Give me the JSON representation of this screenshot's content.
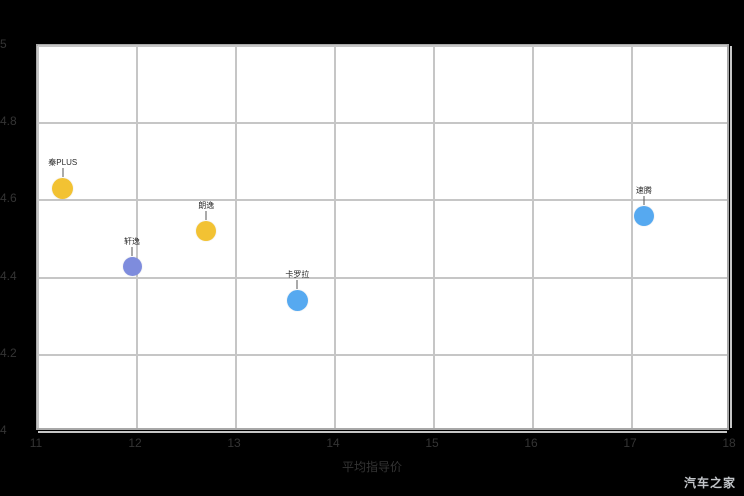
{
  "chart_data": {
    "type": "scatter",
    "title": "",
    "xlabel": "平均指导价",
    "ylabel": "",
    "xlim": [
      11,
      18
    ],
    "ylim": [
      4,
      5
    ],
    "x_ticks": [
      11,
      12,
      13,
      14,
      15,
      16,
      17,
      18
    ],
    "y_ticks": [
      5,
      4.8,
      4.6,
      4.4,
      4.2,
      4
    ],
    "grid": true,
    "legend": "none",
    "points": [
      {
        "label": "秦PLUS",
        "x": 11.25,
        "y": 4.63,
        "color": "#f2c233",
        "size": 21
      },
      {
        "label": "轩逸",
        "x": 11.95,
        "y": 4.43,
        "color": "#7e8cdd",
        "size": 19
      },
      {
        "label": "朗逸",
        "x": 12.7,
        "y": 4.52,
        "color": "#f2c233",
        "size": 20
      },
      {
        "label": "卡罗拉",
        "x": 13.62,
        "y": 4.34,
        "color": "#56a9f0",
        "size": 21
      },
      {
        "label": "速腾",
        "x": 17.12,
        "y": 4.56,
        "color": "#56a9f0",
        "size": 20
      }
    ]
  },
  "watermark": "汽车之家"
}
